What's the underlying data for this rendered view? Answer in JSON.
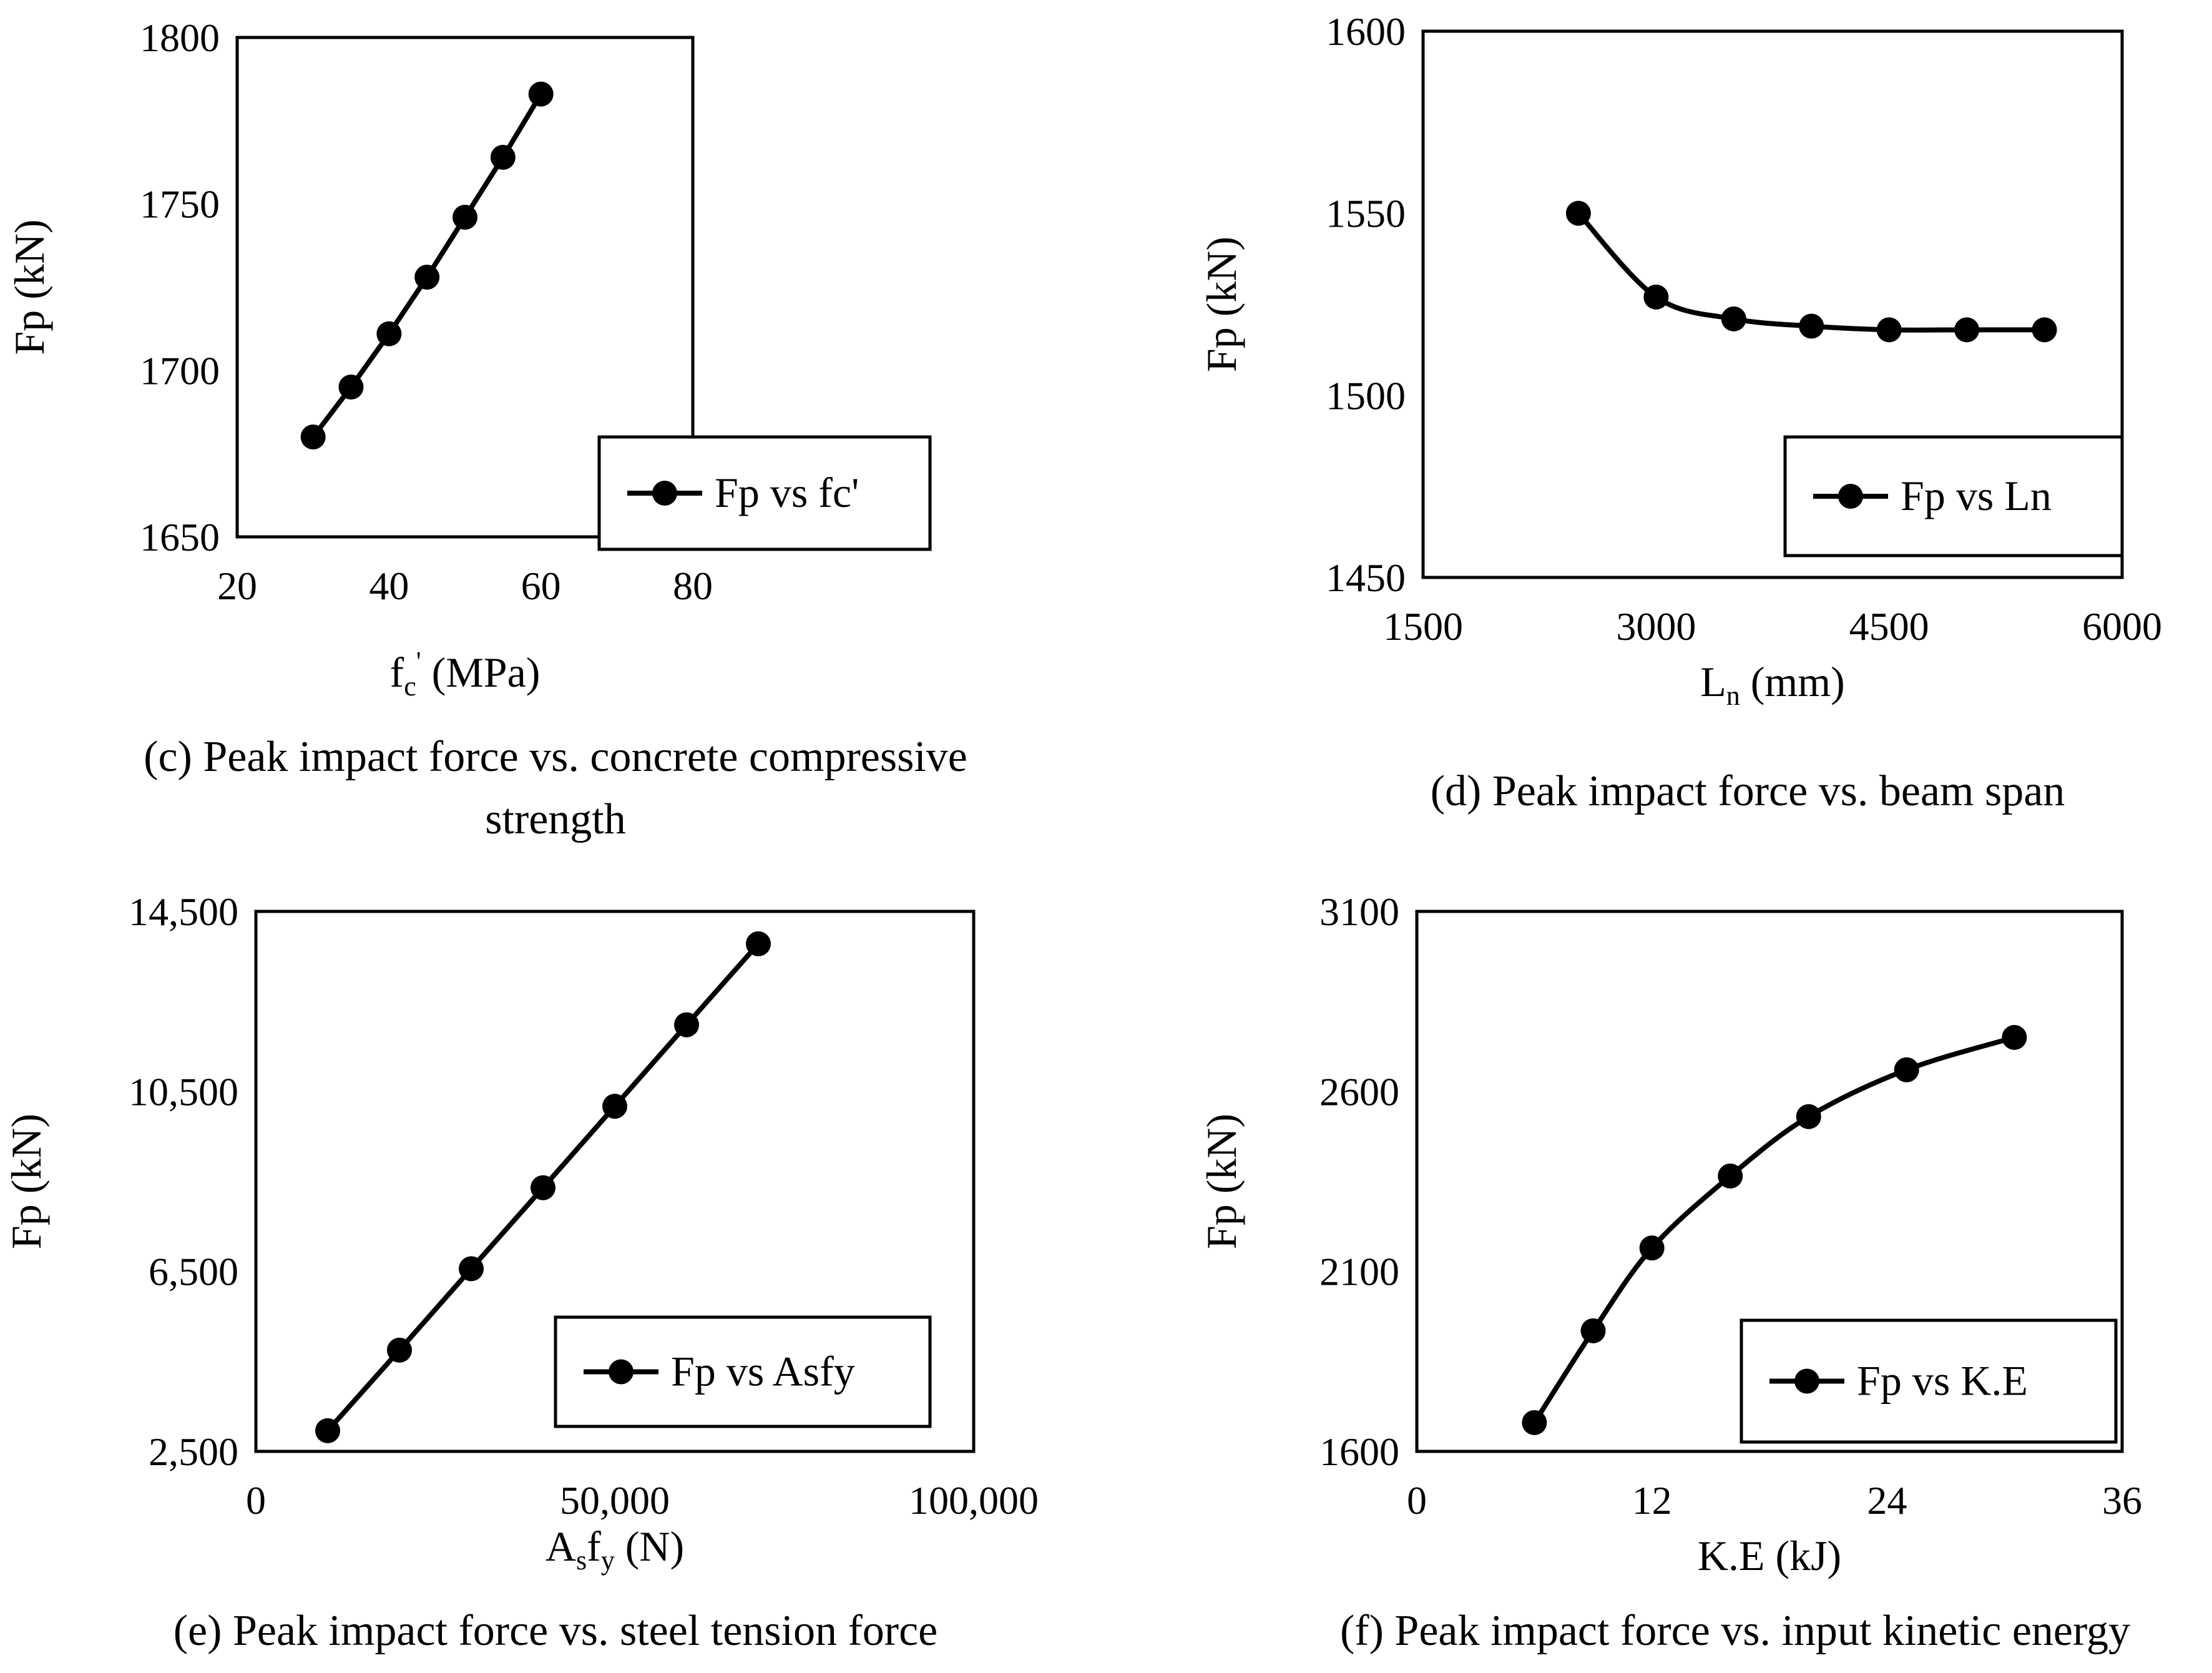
{
  "chart_data": [
    {
      "id": "c",
      "type": "line",
      "title": "",
      "xlabel": "fc' (MPa)",
      "xlabel_main": "f",
      "xlabel_sub": "c",
      "xlabel_sup": "'",
      "xlabel_unit": " (MPa)",
      "ylabel": "Fp (kN)",
      "xlim": [
        20,
        80
      ],
      "ylim": [
        1650,
        1800
      ],
      "xticks": [
        20,
        40,
        60,
        80
      ],
      "xtick_labels": [
        "20",
        "40",
        "60",
        "80"
      ],
      "yticks": [
        1650,
        1700,
        1750,
        1800
      ],
      "ytick_labels": [
        "1650",
        "1700",
        "1750",
        "1800"
      ],
      "smooth": false,
      "series": [
        {
          "name": "Fp vs fc'",
          "x": [
            30,
            35,
            40,
            45,
            50,
            55,
            60
          ],
          "y": [
            1680,
            1695,
            1711,
            1728,
            1746,
            1764,
            1783
          ]
        }
      ],
      "legend_position": "bottom-right",
      "caption_lines": [
        "(c) Peak impact force vs. concrete compressive",
        "strength"
      ]
    },
    {
      "id": "d",
      "type": "line",
      "title": "",
      "xlabel": "Ln (mm)",
      "xlabel_main": "L",
      "xlabel_sub": "n",
      "xlabel_sup": "",
      "xlabel_unit": " (mm)",
      "ylabel": "Fp (kN)",
      "xlim": [
        1500,
        6000
      ],
      "ylim": [
        1450,
        1600
      ],
      "xticks": [
        1500,
        3000,
        4500,
        6000
      ],
      "xtick_labels": [
        "1500",
        "3000",
        "4500",
        "6000"
      ],
      "yticks": [
        1450,
        1500,
        1550,
        1600
      ],
      "ytick_labels": [
        "1450",
        "1500",
        "1550",
        "1600"
      ],
      "smooth": true,
      "series": [
        {
          "name": "Fp vs Ln",
          "x": [
            2500,
            3000,
            3500,
            4000,
            4500,
            5000,
            5500
          ],
          "y": [
            1550,
            1527,
            1521,
            1519,
            1518,
            1518,
            1518
          ]
        }
      ],
      "legend_position": "bottom-right",
      "caption_lines": [
        "(d) Peak impact force vs. beam span"
      ]
    },
    {
      "id": "e",
      "type": "line",
      "title": "",
      "xlabel": "Asfy (N)",
      "xlabel_main": "A",
      "xlabel_sub": "s",
      "xlabel_main2": "f",
      "xlabel_sub2": "y",
      "xlabel_unit": " (N)",
      "ylabel": "Fp (kN)",
      "xlim": [
        0,
        100000
      ],
      "ylim": [
        2500,
        14500
      ],
      "xticks": [
        0,
        50000,
        100000
      ],
      "xtick_labels": [
        "0",
        "50,000",
        "100,000"
      ],
      "yticks": [
        2500,
        6500,
        10500,
        14500
      ],
      "ytick_labels": [
        "2,500",
        "6,500",
        "10,500",
        "14,500"
      ],
      "smooth": false,
      "series": [
        {
          "name": "Fp vs Asfy",
          "x": [
            10000,
            20000,
            30000,
            40000,
            50000,
            60000,
            70000
          ],
          "y": [
            2960,
            4750,
            6560,
            8360,
            10170,
            11980,
            13780
          ]
        }
      ],
      "legend_position": "bottom-right",
      "caption_lines": [
        "(e) Peak impact force vs. steel tension force"
      ]
    },
    {
      "id": "f",
      "type": "line",
      "title": "",
      "xlabel": "K.E (kJ)",
      "xlabel_main": "K.E (kJ)",
      "xlabel_sub": "",
      "xlabel_sup": "",
      "xlabel_unit": "",
      "ylabel": "Fp (kN)",
      "xlim": [
        0,
        36
      ],
      "ylim": [
        1600,
        3100
      ],
      "xticks": [
        0,
        12,
        24,
        36
      ],
      "xtick_labels": [
        "0",
        "12",
        "24",
        "36"
      ],
      "yticks": [
        1600,
        2100,
        2600,
        3100
      ],
      "ytick_labels": [
        "1600",
        "2100",
        "2600",
        "3100"
      ],
      "smooth": true,
      "series": [
        {
          "name": "Fp vs K.E",
          "x": [
            6,
            9,
            12,
            16,
            20,
            25,
            30.5
          ],
          "y": [
            1680,
            1935,
            2165,
            2365,
            2530,
            2660,
            2750
          ]
        }
      ],
      "legend_position": "bottom-right",
      "caption_lines": [
        "(f) Peak impact force vs. input kinetic energy"
      ]
    }
  ]
}
